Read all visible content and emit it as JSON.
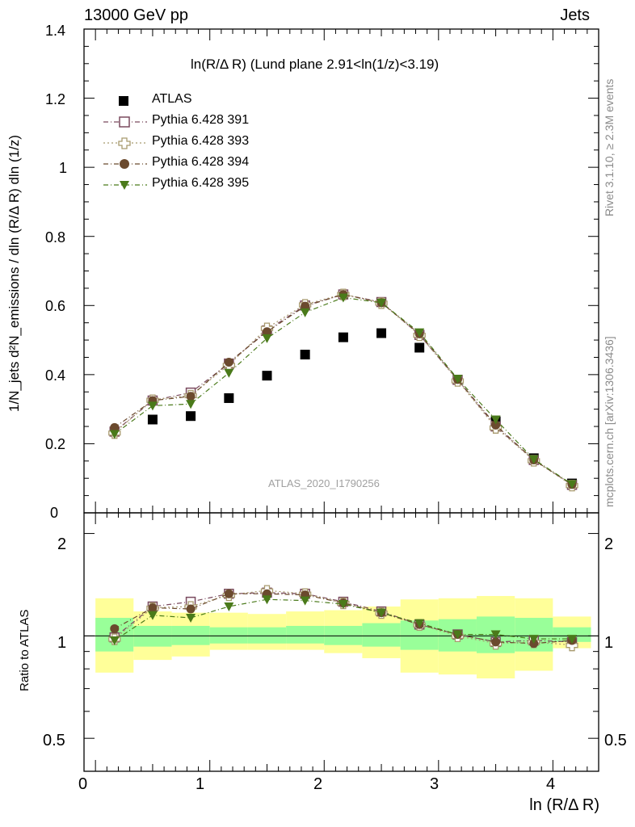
{
  "header": {
    "left": "13000 GeV pp",
    "right": "Jets"
  },
  "title": "ln(R/Δ R) (Lund plane 2.91<ln(1/z)<3.19)",
  "watermark": "ATLAS_2020_I1790256",
  "side_text": {
    "rivet": "Rivet 3.1.10, ≥ 2.3M events",
    "mcplots": "mcplots.cern.ch [arXiv:1306.3436]"
  },
  "axes": {
    "ylabel_main": "1/N_jets d²N_emissions / dln (R/Δ R) dln (1/z)",
    "ylabel_ratio": "Ratio to ATLAS",
    "xlabel": "ln (R/Δ R)",
    "main_yticks": [
      "0",
      "0.2",
      "0.4",
      "0.6",
      "0.8",
      "1",
      "1.2",
      "1.4"
    ],
    "ratio_yticks_left": [
      "0.5",
      "1",
      "2"
    ],
    "ratio_yticks_right": [
      "0.5",
      "1",
      "2"
    ],
    "xticks": [
      "0",
      "1",
      "2",
      "3",
      "4"
    ]
  },
  "legend": [
    {
      "label": "ATLAS",
      "color": "#000000",
      "marker": "filled-square",
      "line": "none"
    },
    {
      "label": "Pythia 6.428 391",
      "color": "#7a4a5e",
      "marker": "open-square",
      "line": "dashdot"
    },
    {
      "label": "Pythia 6.428 393",
      "color": "#a89a6e",
      "marker": "open-cross",
      "line": "dotted"
    },
    {
      "label": "Pythia 6.428 394",
      "color": "#6b4a2e",
      "marker": "filled-circle",
      "line": "dashdot"
    },
    {
      "label": "Pythia 6.428 395",
      "color": "#4a7a1a",
      "marker": "filled-triangle-down",
      "line": "dashdot"
    }
  ],
  "chart_data": [
    {
      "type": "scatter",
      "panel": "main",
      "title": "ln(R/Δ R) (Lund plane 2.91<ln(1/z)<3.19)",
      "xlabel": "ln (R/Δ R)",
      "ylabel": "1/N_jets d²N_emissions / dln (R/Δ R) dln (1/z)",
      "xlim": [
        -0.1,
        4.4
      ],
      "ylim": [
        0,
        1.4
      ],
      "x": [
        0.167,
        0.5,
        0.833,
        1.167,
        1.5,
        1.833,
        2.167,
        2.5,
        2.833,
        3.167,
        3.5,
        3.833,
        4.167
      ],
      "series": [
        {
          "name": "ATLAS",
          "values": [
            0.235,
            0.27,
            0.28,
            0.332,
            0.397,
            0.458,
            0.508,
            0.52,
            0.478,
            0.385,
            0.265,
            0.158,
            0.085
          ]
        },
        {
          "name": "Pythia 6.428 391",
          "values": [
            0.235,
            0.325,
            0.348,
            0.432,
            0.528,
            0.6,
            0.632,
            0.61,
            0.515,
            0.385,
            0.25,
            0.153,
            0.081
          ]
        },
        {
          "name": "Pythia 6.428 393",
          "values": [
            0.232,
            0.327,
            0.34,
            0.428,
            0.535,
            0.603,
            0.633,
            0.608,
            0.515,
            0.383,
            0.247,
            0.152,
            0.08
          ]
        },
        {
          "name": "Pythia 6.428 394",
          "values": [
            0.247,
            0.325,
            0.337,
            0.436,
            0.524,
            0.598,
            0.632,
            0.608,
            0.518,
            0.386,
            0.254,
            0.153,
            0.082
          ]
        },
        {
          "name": "Pythia 6.428 395",
          "values": [
            0.228,
            0.31,
            0.315,
            0.405,
            0.505,
            0.58,
            0.623,
            0.608,
            0.522,
            0.388,
            0.27,
            0.155,
            0.083
          ]
        }
      ]
    },
    {
      "type": "scatter",
      "panel": "ratio",
      "ylabel": "Ratio to ATLAS",
      "xlabel": "ln (R/Δ R)",
      "ylog": true,
      "xlim": [
        -0.1,
        4.4
      ],
      "ylim": [
        0.4,
        2.3
      ],
      "x": [
        0.167,
        0.5,
        0.833,
        1.167,
        1.5,
        1.833,
        2.167,
        2.5,
        2.833,
        3.167,
        3.5,
        3.833,
        4.167
      ],
      "series": [
        {
          "name": "Pythia 6.428 391",
          "values": [
            0.99,
            1.22,
            1.26,
            1.33,
            1.34,
            1.33,
            1.26,
            1.18,
            1.08,
            1.01,
            0.96,
            0.97,
            0.96
          ]
        },
        {
          "name": "Pythia 6.428 393",
          "values": [
            0.98,
            1.21,
            1.22,
            1.32,
            1.36,
            1.33,
            1.25,
            1.17,
            1.08,
            1.0,
            0.95,
            0.96,
            0.94
          ]
        },
        {
          "name": "Pythia 6.428 394",
          "values": [
            1.05,
            1.21,
            1.2,
            1.33,
            1.33,
            1.32,
            1.25,
            1.17,
            1.08,
            1.01,
            0.96,
            0.95,
            0.97
          ]
        },
        {
          "name": "Pythia 6.428 395",
          "values": [
            0.97,
            1.15,
            1.13,
            1.22,
            1.28,
            1.27,
            1.24,
            1.17,
            1.09,
            1.01,
            1.01,
            0.98,
            0.98
          ]
        }
      ],
      "bands": {
        "bin_edges": [
          0.0,
          0.333,
          0.667,
          1.0,
          1.333,
          1.667,
          2.0,
          2.333,
          2.667,
          3.0,
          3.333,
          3.667,
          4.0,
          4.333
        ],
        "yellow_low": [
          0.78,
          0.85,
          0.87,
          0.91,
          0.91,
          0.91,
          0.89,
          0.86,
          0.78,
          0.77,
          0.75,
          0.79,
          0.92
        ],
        "yellow_high": [
          1.29,
          1.18,
          1.17,
          1.17,
          1.16,
          1.18,
          1.19,
          1.22,
          1.28,
          1.29,
          1.31,
          1.29,
          1.14
        ],
        "green_low": [
          0.9,
          0.93,
          0.94,
          0.95,
          0.95,
          0.95,
          0.94,
          0.93,
          0.91,
          0.9,
          0.89,
          0.9,
          0.96
        ],
        "green_high": [
          1.13,
          1.07,
          1.07,
          1.06,
          1.06,
          1.07,
          1.07,
          1.09,
          1.11,
          1.12,
          1.14,
          1.13,
          1.06
        ]
      }
    }
  ]
}
